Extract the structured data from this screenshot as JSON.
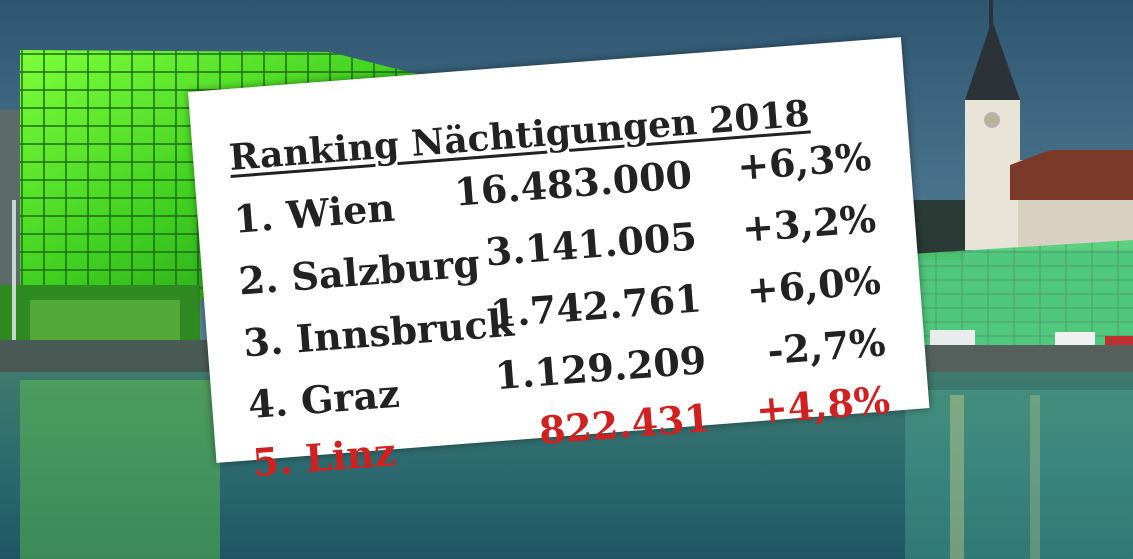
{
  "ranking": {
    "title": "Ranking Nächtigungen 2018",
    "rows": [
      {
        "name": "1. Wien",
        "value": "16.483.000",
        "change": "+6,3%"
      },
      {
        "name": "2. Salzburg",
        "value": "3.141.005",
        "change": "+3,2%"
      },
      {
        "name": "3. Innsbruck",
        "value": "1.742.761",
        "change": "+6,0%"
      },
      {
        "name": "4. Graz",
        "value": "1.129.209",
        "change": "-2,7%"
      },
      {
        "name": "5. Linz",
        "value": "822.431",
        "change": "+4,8%"
      }
    ],
    "highlight_color": "#d12020"
  }
}
